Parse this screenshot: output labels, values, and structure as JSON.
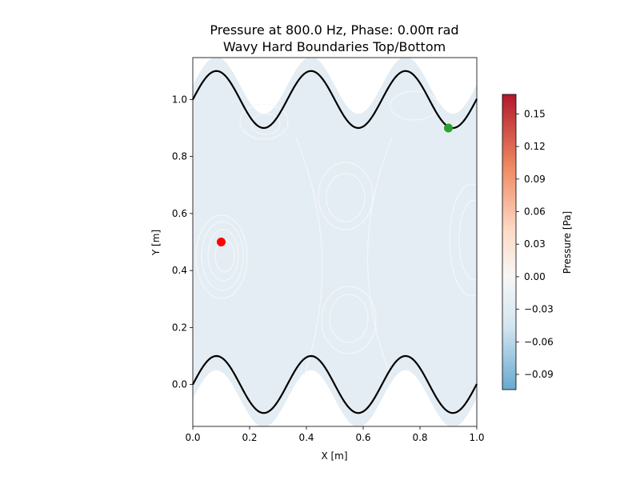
{
  "chart_data": {
    "type": "heatmap",
    "title_line1": "Pressure at 800.0 Hz, Phase: 0.00π rad",
    "title_line2": "Wavy Hard Boundaries Top/Bottom",
    "xlabel": "X [m]",
    "ylabel": "Y [m]",
    "xlim": [
      0.0,
      1.0
    ],
    "ylim": [
      -0.147,
      1.147
    ],
    "xticks": [
      0.0,
      0.2,
      0.4,
      0.6,
      0.8,
      1.0
    ],
    "xtick_labels": [
      "0.0",
      "0.2",
      "0.4",
      "0.6",
      "0.8",
      "1.0"
    ],
    "yticks": [
      0.0,
      0.2,
      0.4,
      0.6,
      0.8,
      1.0
    ],
    "ytick_labels": [
      "0.0",
      "0.2",
      "0.4",
      "0.6",
      "0.8",
      "1.0"
    ],
    "colorbar": {
      "label": "Pressure [Pa]",
      "vmin": -0.104,
      "vmax": 0.168,
      "ticks": [
        -0.09,
        -0.06,
        -0.03,
        0.0,
        0.03,
        0.06,
        0.09,
        0.12,
        0.15
      ],
      "tick_labels": [
        "−0.09",
        "−0.06",
        "−0.03",
        "0.00",
        "0.03",
        "0.06",
        "0.09",
        "0.12",
        "0.15"
      ],
      "colormap": [
        "#67a9cf",
        "#d1e5f0",
        "#f7f7f7",
        "#fddbc7",
        "#ef8a62",
        "#b2182b"
      ]
    },
    "boundaries": {
      "top": {
        "baseline": 1.0,
        "amplitude": 0.1,
        "period": 0.333,
        "color": "#000000"
      },
      "bottom": {
        "baseline": 0.0,
        "amplitude": 0.1,
        "period": 0.333,
        "color": "#000000"
      }
    },
    "markers": [
      {
        "name": "source",
        "x": 0.1,
        "y": 0.5,
        "color": "#ff0000"
      },
      {
        "name": "receiver",
        "x": 0.9,
        "y": 0.9,
        "color": "#2ca02c"
      }
    ],
    "field_color": "#e4edf3",
    "grid": false
  }
}
